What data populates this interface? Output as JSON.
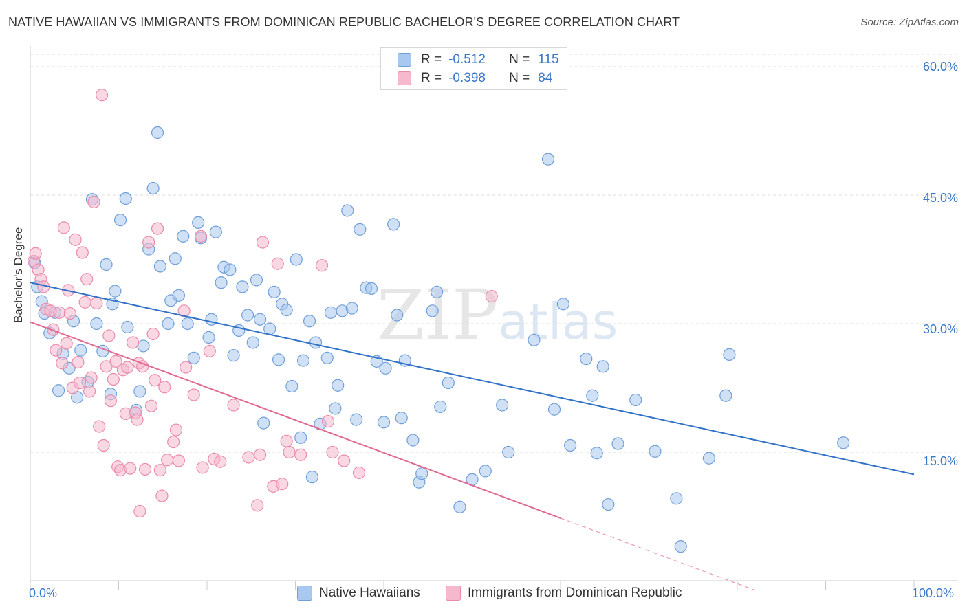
{
  "title": "NATIVE HAWAIIAN VS IMMIGRANTS FROM DOMINICAN REPUBLIC BACHELOR'S DEGREE CORRELATION CHART",
  "source": "Source: ZipAtlas.com",
  "watermark": {
    "zip": "ZIP",
    "atlas": "atlas"
  },
  "legend": {
    "r_label": "R =",
    "n_label": "N =",
    "series": [
      {
        "r": "-0.512",
        "n": "115"
      },
      {
        "r": "-0.398",
        "n": "84"
      }
    ]
  },
  "colors": {
    "blue_fill": "#a9c8ef",
    "blue_stroke": "#6f9fd8",
    "blue_line": "#3172c7",
    "pink_fill": "#f6b8cc",
    "pink_stroke": "#e98aab",
    "pink_line": "#e06893",
    "grid": "#dddddd",
    "tick_text": "#3a78c9"
  },
  "chart_data": {
    "type": "scatter",
    "xlabel": "",
    "ylabel": "Bachelor's Degree",
    "xlim": [
      0,
      100
    ],
    "ylim": [
      0,
      60
    ],
    "x_tick_labels": [
      "0.0%",
      "100.0%"
    ],
    "y_ticks": [
      15,
      30,
      45,
      60
    ],
    "y_tick_labels": [
      "15.0%",
      "30.0%",
      "45.0%",
      "60.0%"
    ],
    "grid": true,
    "legend_position": "top-center",
    "series": [
      {
        "name": "Native Hawaiians",
        "color": "#a9c8ef",
        "trend": {
          "x": [
            0,
            100
          ],
          "y": [
            34.8,
            12.4
          ]
        },
        "points": [
          [
            0.5,
            37.1
          ],
          [
            0.8,
            34.3
          ],
          [
            1.3,
            32.6
          ],
          [
            1.6,
            31.2
          ],
          [
            2.2,
            28.9
          ],
          [
            2.8,
            31.3
          ],
          [
            3.2,
            22.2
          ],
          [
            3.7,
            26.5
          ],
          [
            4.4,
            24.8
          ],
          [
            4.9,
            30.3
          ],
          [
            5.3,
            21.4
          ],
          [
            5.7,
            26.9
          ],
          [
            6.5,
            23.2
          ],
          [
            7.0,
            44.5
          ],
          [
            7.5,
            30.0
          ],
          [
            8.2,
            26.8
          ],
          [
            8.6,
            36.9
          ],
          [
            9.1,
            21.8
          ],
          [
            9.6,
            33.8
          ],
          [
            9.3,
            32.3
          ],
          [
            10.2,
            42.1
          ],
          [
            10.8,
            44.6
          ],
          [
            11.0,
            29.6
          ],
          [
            12.0,
            19.9
          ],
          [
            12.4,
            22.1
          ],
          [
            12.8,
            27.4
          ],
          [
            13.4,
            38.7
          ],
          [
            13.9,
            45.8
          ],
          [
            14.4,
            52.3
          ],
          [
            14.7,
            36.7
          ],
          [
            15.6,
            30.0
          ],
          [
            15.9,
            32.7
          ],
          [
            16.4,
            37.6
          ],
          [
            16.8,
            33.3
          ],
          [
            17.3,
            40.2
          ],
          [
            17.8,
            30.0
          ],
          [
            18.5,
            26.0
          ],
          [
            19.0,
            41.8
          ],
          [
            19.3,
            40.0
          ],
          [
            20.2,
            28.4
          ],
          [
            20.5,
            30.5
          ],
          [
            21.0,
            40.7
          ],
          [
            21.6,
            34.8
          ],
          [
            21.9,
            36.6
          ],
          [
            22.6,
            36.3
          ],
          [
            23.0,
            26.3
          ],
          [
            23.6,
            29.2
          ],
          [
            24.0,
            34.3
          ],
          [
            24.6,
            31.0
          ],
          [
            25.2,
            27.8
          ],
          [
            25.6,
            35.1
          ],
          [
            26.0,
            30.5
          ],
          [
            26.4,
            18.4
          ],
          [
            27.1,
            29.4
          ],
          [
            27.6,
            33.7
          ],
          [
            28.1,
            25.8
          ],
          [
            28.5,
            32.3
          ],
          [
            29.0,
            31.6
          ],
          [
            29.6,
            22.7
          ],
          [
            30.1,
            37.5
          ],
          [
            30.6,
            16.7
          ],
          [
            30.9,
            25.7
          ],
          [
            31.6,
            30.3
          ],
          [
            31.9,
            12.1
          ],
          [
            32.3,
            27.8
          ],
          [
            32.8,
            18.3
          ],
          [
            33.6,
            26.0
          ],
          [
            34.0,
            31.3
          ],
          [
            34.5,
            20.1
          ],
          [
            34.8,
            22.8
          ],
          [
            35.3,
            31.5
          ],
          [
            35.9,
            43.2
          ],
          [
            36.4,
            31.8
          ],
          [
            36.9,
            18.8
          ],
          [
            37.3,
            41.0
          ],
          [
            38.0,
            34.2
          ],
          [
            38.6,
            34.1
          ],
          [
            39.2,
            25.6
          ],
          [
            40.0,
            18.5
          ],
          [
            40.2,
            24.8
          ],
          [
            41.1,
            41.6
          ],
          [
            41.5,
            31.0
          ],
          [
            42.0,
            19.0
          ],
          [
            42.4,
            25.7
          ],
          [
            43.3,
            16.4
          ],
          [
            44.0,
            11.5
          ],
          [
            44.3,
            12.5
          ],
          [
            45.5,
            31.5
          ],
          [
            46.0,
            33.7
          ],
          [
            46.4,
            20.3
          ],
          [
            47.3,
            23.1
          ],
          [
            48.6,
            8.6
          ],
          [
            50.0,
            11.8
          ],
          [
            51.5,
            12.8
          ],
          [
            53.4,
            20.5
          ],
          [
            54.1,
            15.0
          ],
          [
            57.0,
            28.1
          ],
          [
            58.6,
            49.2
          ],
          [
            59.3,
            20.0
          ],
          [
            60.3,
            32.3
          ],
          [
            61.1,
            15.8
          ],
          [
            62.9,
            25.9
          ],
          [
            63.6,
            21.6
          ],
          [
            64.1,
            14.9
          ],
          [
            64.8,
            25.0
          ],
          [
            65.4,
            8.9
          ],
          [
            66.5,
            16.0
          ],
          [
            68.5,
            21.1
          ],
          [
            70.7,
            15.1
          ],
          [
            73.1,
            9.6
          ],
          [
            73.6,
            4.0
          ],
          [
            76.8,
            14.3
          ],
          [
            78.7,
            21.6
          ],
          [
            79.1,
            26.4
          ],
          [
            92.0,
            16.1
          ]
        ]
      },
      {
        "name": "Immigrants from Dominican Republic",
        "color": "#f6b8cc",
        "trend": {
          "x": [
            0,
            60
          ],
          "y": [
            30.2,
            7.3
          ]
        },
        "trend_extended": {
          "x": [
            60,
            82
          ],
          "y": [
            7.3,
            -1.1
          ]
        },
        "points": [
          [
            0.4,
            37.3
          ],
          [
            0.6,
            38.2
          ],
          [
            0.9,
            36.3
          ],
          [
            1.2,
            35.2
          ],
          [
            1.5,
            34.3
          ],
          [
            1.8,
            31.7
          ],
          [
            2.3,
            31.5
          ],
          [
            2.6,
            29.3
          ],
          [
            2.9,
            26.9
          ],
          [
            3.3,
            31.3
          ],
          [
            3.6,
            25.4
          ],
          [
            3.8,
            41.2
          ],
          [
            4.1,
            27.7
          ],
          [
            4.3,
            33.9
          ],
          [
            4.5,
            31.2
          ],
          [
            4.8,
            22.5
          ],
          [
            5.1,
            39.8
          ],
          [
            5.4,
            25.5
          ],
          [
            5.6,
            23.1
          ],
          [
            5.9,
            38.3
          ],
          [
            6.2,
            32.5
          ],
          [
            6.4,
            35.2
          ],
          [
            6.7,
            22.1
          ],
          [
            6.9,
            23.7
          ],
          [
            7.2,
            44.2
          ],
          [
            7.5,
            32.4
          ],
          [
            7.8,
            18.0
          ],
          [
            8.1,
            56.7
          ],
          [
            8.3,
            15.8
          ],
          [
            8.6,
            25.0
          ],
          [
            8.9,
            28.6
          ],
          [
            9.1,
            21.0
          ],
          [
            9.4,
            23.5
          ],
          [
            9.7,
            25.6
          ],
          [
            9.9,
            13.3
          ],
          [
            10.2,
            12.9
          ],
          [
            10.5,
            24.6
          ],
          [
            10.8,
            19.5
          ],
          [
            11.0,
            24.9
          ],
          [
            11.3,
            13.1
          ],
          [
            11.6,
            27.8
          ],
          [
            11.9,
            19.6
          ],
          [
            12.1,
            18.8
          ],
          [
            12.3,
            25.4
          ],
          [
            12.4,
            8.1
          ],
          [
            12.7,
            25.0
          ],
          [
            13.0,
            13.0
          ],
          [
            13.4,
            39.5
          ],
          [
            13.7,
            20.4
          ],
          [
            13.9,
            28.8
          ],
          [
            14.1,
            23.4
          ],
          [
            14.4,
            41.1
          ],
          [
            14.7,
            12.9
          ],
          [
            14.9,
            9.9
          ],
          [
            15.2,
            22.6
          ],
          [
            15.5,
            14.1
          ],
          [
            16.2,
            16.2
          ],
          [
            16.5,
            17.6
          ],
          [
            16.8,
            14.0
          ],
          [
            17.4,
            31.5
          ],
          [
            17.6,
            24.9
          ],
          [
            18.5,
            21.7
          ],
          [
            19.3,
            40.2
          ],
          [
            19.5,
            13.2
          ],
          [
            20.3,
            26.8
          ],
          [
            20.8,
            14.2
          ],
          [
            21.5,
            13.9
          ],
          [
            23.0,
            20.5
          ],
          [
            24.7,
            14.4
          ],
          [
            25.7,
            8.8
          ],
          [
            26.0,
            14.7
          ],
          [
            26.3,
            39.5
          ],
          [
            27.5,
            11.0
          ],
          [
            28.0,
            37.0
          ],
          [
            28.5,
            11.3
          ],
          [
            29.0,
            16.3
          ],
          [
            29.3,
            15.0
          ],
          [
            30.6,
            14.7
          ],
          [
            33.0,
            36.8
          ],
          [
            33.7,
            18.6
          ],
          [
            34.2,
            15.0
          ],
          [
            35.5,
            14.0
          ],
          [
            37.2,
            12.6
          ],
          [
            52.2,
            33.2
          ]
        ]
      }
    ]
  },
  "bottom_legend": [
    "Native Hawaiians",
    "Immigrants from Dominican Republic"
  ]
}
